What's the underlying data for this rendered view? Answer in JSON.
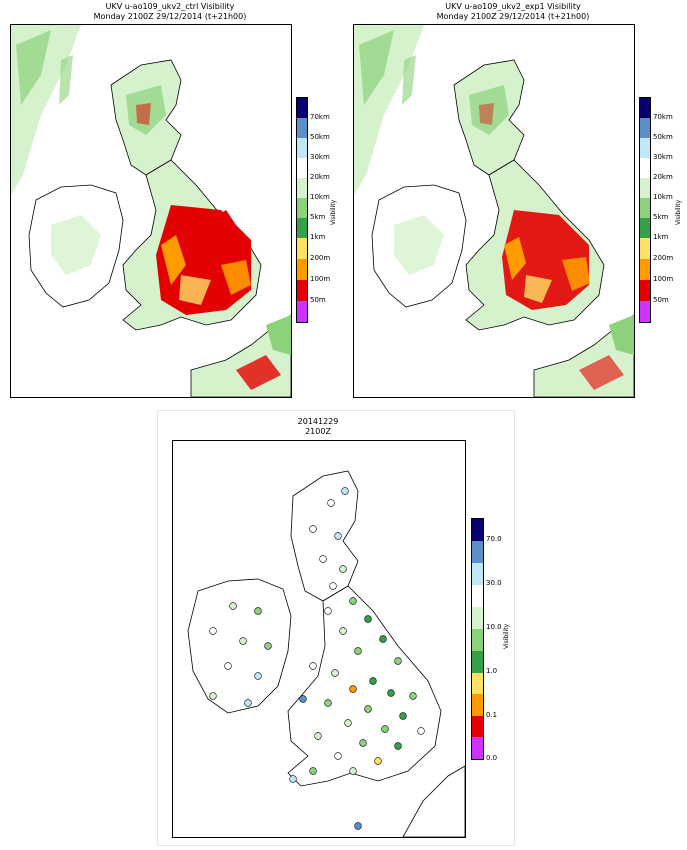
{
  "panels": {
    "ctrl": {
      "title_line1": "UKV u-ao109_ukv2_ctrl Visibility",
      "title_line2": "Monday 2100Z 29/12/2014 (t+21h00)"
    },
    "exp1": {
      "title_line1": "UKV u-ao109_ukv2_exp1 Visibility",
      "title_line2": "Monday 2100Z 29/12/2014 (t+21h00)"
    },
    "obs": {
      "title_line1": "20141229",
      "title_line2": "2100Z"
    }
  },
  "model_colorbar": {
    "label": "Visibility",
    "ticks": [
      "70km",
      "50km",
      "30km",
      "20km",
      "10km",
      "5km",
      "1km",
      "200m",
      "100m",
      "50m"
    ],
    "colors": [
      "#08006e",
      "#5b8fc7",
      "#bfe8f7",
      "#ffffff",
      "#d6f2cd",
      "#8bd27a",
      "#34a048",
      "#ffe066",
      "#ff9a00",
      "#e30000",
      "#cc33ff"
    ]
  },
  "obs_colorbar": {
    "label": "Visibility",
    "ticks": [
      "70.0",
      "30.0",
      "10.0",
      "1.0",
      "0.1",
      "0.0"
    ],
    "colors": [
      "#08006e",
      "#5b8fc7",
      "#bfe8f7",
      "#ffffff",
      "#d6f2cd",
      "#8bd27a",
      "#34a048",
      "#ffe066",
      "#ff9a00",
      "#e30000",
      "#cc33ff"
    ]
  },
  "obs_station_colors": {
    "white": "#ffffff",
    "pale": "#d6f2cd",
    "light_green": "#8bd27a",
    "green": "#34a048",
    "light_blue": "#bfe8f7",
    "blue": "#5b8fc7",
    "yellow": "#ffe066",
    "orange": "#ff9a00"
  }
}
